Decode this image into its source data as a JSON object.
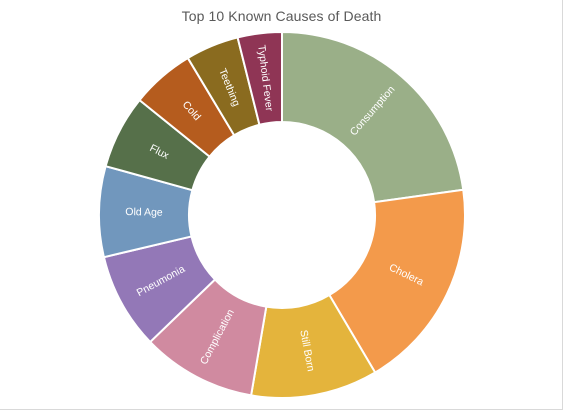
{
  "chart_data": {
    "type": "pie",
    "variant": "donut",
    "title": "Top 10 Known Causes of Death",
    "legend": "none",
    "categories": [
      "Consumption",
      "Cholera",
      "Still Born",
      "Complication",
      "Pneumonia",
      "Old Age",
      "Flux",
      "Cold",
      "Teething",
      "Typhoid Fever"
    ],
    "values": [
      22.8,
      18.7,
      11.2,
      10.1,
      8.5,
      8.0,
      6.5,
      5.6,
      4.7,
      3.9
    ],
    "colors": [
      "#9aaf88",
      "#f39a4b",
      "#e4b43c",
      "#d08aa0",
      "#9378b7",
      "#7197bd",
      "#56704a",
      "#b55c1e",
      "#8a6b1f",
      "#8f3555"
    ]
  }
}
